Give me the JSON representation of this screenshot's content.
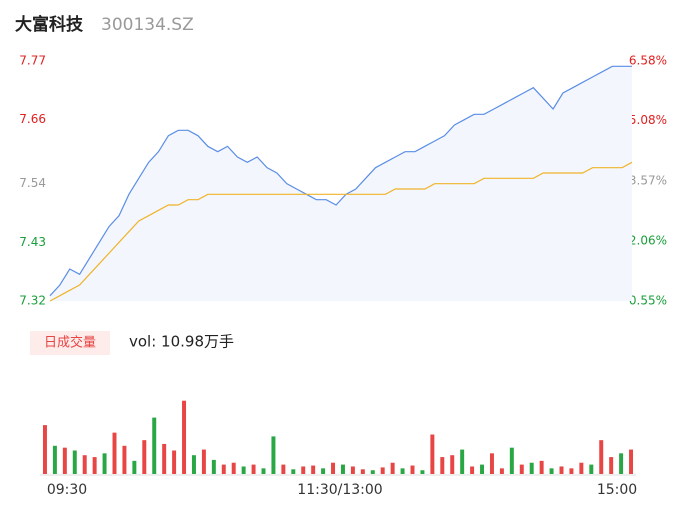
{
  "chart_data": {
    "type": "intraday",
    "title": "大富科技",
    "subtitle": "300134.SZ",
    "ylim": [
      7.32,
      7.77
    ],
    "yticks": [
      7.32,
      7.43,
      7.54,
      7.66,
      7.77
    ],
    "y2lim": [
      0.55,
      6.58
    ],
    "y2ticks": [
      {
        "value": 0.55,
        "label": "0.55%"
      },
      {
        "value": 2.06,
        "label": "2.06%"
      },
      {
        "value": 3.57,
        "label": "3.57%"
      },
      {
        "value": 5.08,
        "label": "5.08%"
      },
      {
        "value": 6.58,
        "label": "6.58%"
      }
    ],
    "tick_colors": [
      "#1a9e3a",
      "#1a9e3a",
      "#999999",
      "#e02020",
      "#e02020"
    ],
    "x_labels": [
      "09:30",
      "11:30/13:00",
      "15:00"
    ],
    "series": [
      {
        "name": "price",
        "color": "#5b8ee6",
        "values": [
          7.33,
          7.35,
          7.38,
          7.37,
          7.4,
          7.43,
          7.46,
          7.48,
          7.52,
          7.55,
          7.58,
          7.6,
          7.63,
          7.64,
          7.64,
          7.63,
          7.61,
          7.6,
          7.61,
          7.59,
          7.58,
          7.59,
          7.57,
          7.56,
          7.54,
          7.53,
          7.52,
          7.51,
          7.51,
          7.5,
          7.52,
          7.53,
          7.55,
          7.57,
          7.58,
          7.59,
          7.6,
          7.6,
          7.61,
          7.62,
          7.63,
          7.65,
          7.66,
          7.67,
          7.67,
          7.68,
          7.69,
          7.7,
          7.71,
          7.72,
          7.7,
          7.68,
          7.71,
          7.72,
          7.73,
          7.74,
          7.75,
          7.76,
          7.76,
          7.76
        ]
      },
      {
        "name": "average",
        "color": "#f0b429",
        "values": [
          7.32,
          7.33,
          7.34,
          7.35,
          7.37,
          7.39,
          7.41,
          7.43,
          7.45,
          7.47,
          7.48,
          7.49,
          7.5,
          7.5,
          7.51,
          7.51,
          7.52,
          7.52,
          7.52,
          7.52,
          7.52,
          7.52,
          7.52,
          7.52,
          7.52,
          7.52,
          7.52,
          7.52,
          7.52,
          7.52,
          7.52,
          7.52,
          7.52,
          7.52,
          7.52,
          7.53,
          7.53,
          7.53,
          7.53,
          7.54,
          7.54,
          7.54,
          7.54,
          7.54,
          7.55,
          7.55,
          7.55,
          7.55,
          7.55,
          7.55,
          7.56,
          7.56,
          7.56,
          7.56,
          7.56,
          7.57,
          7.57,
          7.57,
          7.57,
          7.58
        ]
      }
    ],
    "volume_tab": "日成交量",
    "volume_label": "vol: 10.98万手",
    "volume": {
      "ylim": [
        0,
        100
      ],
      "values": [
        52,
        30,
        28,
        25,
        20,
        18,
        22,
        44,
        30,
        14,
        36,
        60,
        32,
        25,
        78,
        20,
        26,
        15,
        10,
        12,
        8,
        10,
        6,
        40,
        10,
        5,
        8,
        9,
        6,
        12,
        10,
        8,
        5,
        4,
        7,
        12,
        6,
        9,
        4,
        42,
        18,
        20,
        26,
        8,
        10,
        22,
        6,
        28,
        10,
        12,
        14,
        6,
        8,
        6,
        12,
        10,
        36,
        18,
        22,
        26
      ],
      "colors": [
        "#e84545",
        "#2aa745",
        "#e84545",
        "#2aa745",
        "#e84545",
        "#e84545",
        "#2aa745",
        "#e84545",
        "#e84545",
        "#2aa745",
        "#e84545",
        "#2aa745",
        "#e84545",
        "#e84545",
        "#e84545",
        "#2aa745",
        "#e84545",
        "#2aa745",
        "#e84545",
        "#e84545",
        "#2aa745",
        "#e84545",
        "#2aa745",
        "#2aa745",
        "#e84545",
        "#2aa745",
        "#e84545",
        "#e84545",
        "#2aa745",
        "#e84545",
        "#2aa745",
        "#e84545",
        "#e84545",
        "#2aa745",
        "#e84545",
        "#e84545",
        "#2aa745",
        "#e84545",
        "#2aa745",
        "#e84545",
        "#e84545",
        "#e84545",
        "#2aa745",
        "#e84545",
        "#2aa745",
        "#e84545",
        "#e84545",
        "#2aa745",
        "#e84545",
        "#2aa745",
        "#e84545",
        "#2aa745",
        "#e84545",
        "#e84545",
        "#e84545",
        "#2aa745",
        "#e84545",
        "#e84545",
        "#2aa745",
        "#e84545"
      ]
    }
  }
}
